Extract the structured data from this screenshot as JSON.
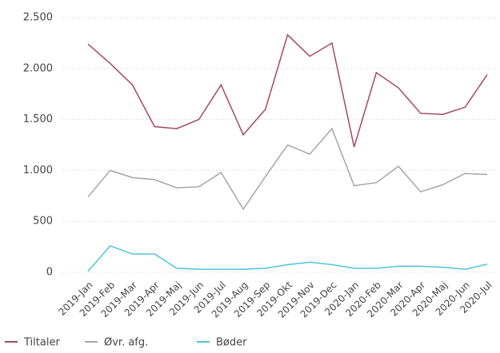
{
  "chart_data": {
    "type": "line",
    "categories": [
      "2019-Jan",
      "2019-Feb",
      "2019-Mar",
      "2019-Apr",
      "2019-Maj",
      "2019-Jun",
      "2019-Jul",
      "2019-Aug",
      "2019-Sep",
      "2019-Okt",
      "2019-Nov",
      "2019-Dec",
      "2020-Jan",
      "2020-Feb",
      "2020-Mar",
      "2020-Apr",
      "2020-Maj",
      "2020-Jun",
      "2020-Jul"
    ],
    "series": [
      {
        "name": "Tiltaler",
        "color": "#a4495c",
        "values": [
          2240,
          2050,
          1840,
          1430,
          1410,
          1500,
          1840,
          1350,
          1600,
          2330,
          2120,
          2250,
          1230,
          1960,
          1810,
          1560,
          1550,
          1620,
          1940
        ]
      },
      {
        "name": "Øvr. afg.",
        "color": "#a6a6a6",
        "values": [
          740,
          1000,
          930,
          910,
          830,
          840,
          980,
          620,
          940,
          1250,
          1160,
          1410,
          850,
          880,
          1040,
          790,
          860,
          970,
          960
        ]
      },
      {
        "name": "Bøder",
        "color": "#4fc3d9",
        "values": [
          10,
          260,
          180,
          180,
          40,
          30,
          30,
          30,
          40,
          75,
          100,
          75,
          40,
          40,
          60,
          60,
          50,
          30,
          80
        ]
      }
    ],
    "ylim": [
      0,
      2500
    ],
    "yticks": [
      0,
      500,
      {
        "value": 1000,
        "label": "1.000"
      },
      {
        "value": 1500,
        "label": "1.500"
      },
      {
        "value": 2000,
        "label": "2.000"
      },
      {
        "value": 2500,
        "label": "2.500"
      }
    ],
    "grid": true,
    "legend": "bottom"
  }
}
